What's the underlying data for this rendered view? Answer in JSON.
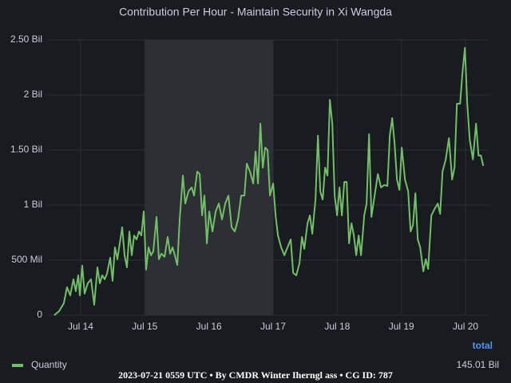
{
  "chart_data": {
    "type": "line",
    "title": "Contribution Per Hour - Maintain Security in Xi Wangda",
    "x": [
      13.589,
      13.664,
      13.738,
      13.788,
      13.838,
      13.888,
      13.925,
      13.963,
      13.988,
      14.025,
      14.062,
      14.112,
      14.162,
      14.212,
      14.262,
      14.299,
      14.336,
      14.374,
      14.411,
      14.461,
      14.498,
      14.535,
      14.573,
      14.61,
      14.648,
      14.685,
      14.722,
      14.76,
      14.797,
      14.834,
      14.872,
      14.909,
      14.946,
      14.984,
      15.021,
      15.059,
      15.096,
      15.133,
      15.183,
      15.22,
      15.258,
      15.308,
      15.357,
      15.395,
      15.432,
      15.469,
      15.507,
      15.544,
      15.594,
      15.631,
      15.681,
      15.731,
      15.768,
      15.818,
      15.856,
      15.893,
      15.93,
      15.968,
      16.005,
      16.055,
      16.105,
      16.154,
      16.204,
      16.254,
      16.304,
      16.354,
      16.403,
      16.453,
      16.503,
      16.553,
      16.59,
      16.64,
      16.69,
      16.727,
      16.765,
      16.802,
      16.839,
      16.877,
      16.914,
      16.951,
      17.001,
      17.039,
      17.076,
      17.126,
      17.176,
      17.225,
      17.275,
      17.313,
      17.362,
      17.412,
      17.45,
      17.487,
      17.537,
      17.574,
      17.611,
      17.661,
      17.699,
      17.736,
      17.773,
      17.811,
      17.848,
      17.885,
      17.923,
      17.96,
      17.998,
      18.035,
      18.072,
      18.11,
      18.147,
      18.184,
      18.222,
      18.259,
      18.296,
      18.334,
      18.371,
      18.421,
      18.458,
      18.496,
      18.533,
      18.583,
      18.633,
      18.682,
      18.732,
      18.782,
      18.819,
      18.857,
      18.894,
      18.931,
      18.969,
      19.006,
      19.056,
      19.106,
      19.143,
      19.181,
      19.218,
      19.255,
      19.293,
      19.342,
      19.38,
      19.417,
      19.467,
      19.517,
      19.567,
      19.604,
      19.641,
      19.691,
      19.741,
      19.791,
      19.828,
      19.865,
      19.915,
      19.953,
      19.99,
      20.027,
      20.065,
      20.115,
      20.164,
      20.202,
      20.239,
      20.276
    ],
    "series": [
      {
        "name": "Quantity",
        "color": "#73bf69",
        "values": [
          0,
          36000000.0,
          108000000.0,
          254000000.0,
          180000000.0,
          326000000.0,
          218000000.0,
          362000000.0,
          180000000.0,
          450000000.0,
          196000000.0,
          290000000.0,
          326000000.0,
          94000000.0,
          434000000.0,
          290000000.0,
          362000000.0,
          326000000.0,
          376000000.0,
          522000000.0,
          312000000.0,
          616000000.0,
          508000000.0,
          652000000.0,
          798000000.0,
          544000000.0,
          434000000.0,
          760000000.0,
          544000000.0,
          724000000.0,
          688000000.0,
          760000000.0,
          724000000.0,
          942000000.0,
          414000000.0,
          616000000.0,
          544000000.0,
          580000000.0,
          892000000.0,
          508000000.0,
          558000000.0,
          530000000.0,
          710000000.0,
          558000000.0,
          616000000.0,
          544000000.0,
          456000000.0,
          870000000.0,
          1268000000.0,
          1014000000.0,
          1124000000.0,
          1160000000.0,
          1086000000.0,
          1304000000.0,
          1282000000.0,
          906000000.0,
          1086000000.0,
          652000000.0,
          942000000.0,
          760000000.0,
          942000000.0,
          1014000000.0,
          870000000.0,
          1014000000.0,
          1086000000.0,
          798000000.0,
          760000000.0,
          870000000.0,
          1086000000.0,
          1086000000.0,
          1376000000.0,
          1304000000.0,
          1196000000.0,
          1486000000.0,
          1196000000.0,
          1740000000.0,
          1340000000.0,
          1522000000.0,
          1500000000.0,
          1086000000.0,
          1196000000.0,
          906000000.0,
          724000000.0,
          616000000.0,
          544000000.0,
          616000000.0,
          688000000.0,
          384000000.0,
          362000000.0,
          472000000.0,
          710000000.0,
          602000000.0,
          834000000.0,
          906000000.0,
          740000000.0,
          1050000000.0,
          1630000000.0,
          1124000000.0,
          1050000000.0,
          1340000000.0,
          1268000000.0,
          1956000000.0,
          1740000000.0,
          1086000000.0,
          906000000.0,
          1160000000.0,
          906000000.0,
          1210000000.0,
          1210000000.0,
          652000000.0,
          834000000.0,
          724000000.0,
          544000000.0,
          724000000.0,
          544000000.0,
          906000000.0,
          1014000000.0,
          1644000000.0,
          892000000.0,
          1086000000.0,
          1282000000.0,
          1160000000.0,
          1182000000.0,
          1174000000.0,
          1630000000.0,
          1790000000.0,
          1558000000.0,
          1232000000.0,
          1138000000.0,
          1522000000.0,
          1232000000.0,
          1124000000.0,
          760000000.0,
          818000000.0,
          1108000000.0,
          688000000.0,
          616000000.0,
          398000000.0,
          508000000.0,
          420000000.0,
          906000000.0,
          964000000.0,
          1014000000.0,
          920000000.0,
          1304000000.0,
          1414000000.0,
          1608000000.0,
          1232000000.0,
          1340000000.0,
          1920000000.0,
          1920000000.0,
          2210000000.0,
          2428000000.0,
          1920000000.0,
          1594000000.0,
          1414000000.0,
          1740000000.0,
          1450000000.0,
          1450000000.0,
          1356000000.0
        ]
      }
    ],
    "xlim": [
      13.49,
      20.36
    ],
    "xticks": [
      {
        "value": 14,
        "label": "Jul 14"
      },
      {
        "value": 15,
        "label": "Jul 15"
      },
      {
        "value": 16,
        "label": "Jul 16"
      },
      {
        "value": 17,
        "label": "Jul 17"
      },
      {
        "value": 18,
        "label": "Jul 18"
      },
      {
        "value": 19,
        "label": "Jul 19"
      },
      {
        "value": 20,
        "label": "Jul 20"
      }
    ],
    "ylim": [
      0,
      2500000000
    ],
    "yticks": [
      0,
      {
        "value": 500000000,
        "label": "500 Mil"
      },
      {
        "value": 1000000000,
        "label": "1 Bil"
      },
      {
        "value": 1500000000,
        "label": "1.50 Bil"
      },
      {
        "value": 2000000000,
        "label": "2 Bil"
      },
      {
        "value": 2500000000,
        "label": "2.50 Bil"
      }
    ],
    "grid": true,
    "highlight_range": [
      15,
      17
    ],
    "legend_header": "total",
    "legend_total": "145.01 Bil",
    "footer": "2023-07-21 0559 UTC • By CMDR Winter Iherngl ass • CG ID: 787"
  }
}
